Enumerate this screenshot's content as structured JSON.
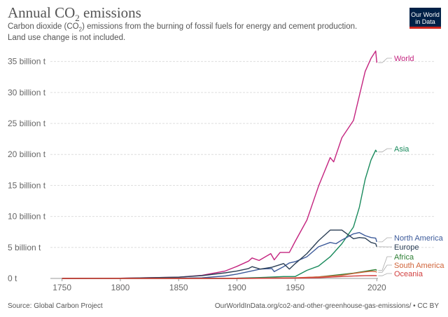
{
  "header": {
    "title_main": "Annual CO",
    "title_sub": "2",
    "title_end": " emissions",
    "subtitle_a": "Carbon dioxide (CO",
    "subtitle_sub": "2",
    "subtitle_b": ") emissions from the burning of fossil fuels for energy and cement production. Land use change is not included."
  },
  "logo": {
    "line1": "Our World",
    "line2": "in Data"
  },
  "footer": {
    "source": "Source: Global Carbon Project",
    "url": "OurWorldInData.org/co2-and-other-greenhouse-gas-emissions/ • CC BY"
  },
  "chart_data": {
    "type": "line",
    "title": "Annual CO2 emissions",
    "xlabel": "",
    "ylabel": "",
    "xlim": [
      1740,
      2021
    ],
    "ylim": [
      0,
      37000000000
    ],
    "x_ticks": [
      1750,
      1800,
      1850,
      1900,
      1950,
      2020
    ],
    "x_tick_labels": [
      "1750",
      "1800",
      "1850",
      "1900",
      "1950",
      "2020"
    ],
    "y_ticks": [
      0,
      5000000000,
      10000000000,
      15000000000,
      20000000000,
      25000000000,
      30000000000,
      35000000000
    ],
    "y_tick_labels": [
      "0 t",
      "5 billion t",
      "10 billion t",
      "15 billion t",
      "20 billion t",
      "25 billion t",
      "30 billion t",
      "35 billion t"
    ],
    "grid": true,
    "series": [
      {
        "name": "World",
        "color": "#c4247f",
        "x": [
          1750,
          1800,
          1850,
          1870,
          1890,
          1900,
          1910,
          1913,
          1919,
          1929,
          1932,
          1937,
          1945,
          1950,
          1960,
          1970,
          1980,
          1983,
          1990,
          2000,
          2005,
          2010,
          2015,
          2019,
          2020
        ],
        "values": [
          0.01,
          0.03,
          0.2,
          0.5,
          1.2,
          1.95,
          2.8,
          3.3,
          2.9,
          4.0,
          3.0,
          4.2,
          4.2,
          6.0,
          9.4,
          14.9,
          19.5,
          18.8,
          22.7,
          25.5,
          29.5,
          33.4,
          35.5,
          36.7,
          34.8
        ]
      },
      {
        "name": "Asia",
        "color": "#198a5c",
        "x": [
          1750,
          1850,
          1900,
          1920,
          1940,
          1950,
          1960,
          1970,
          1980,
          1990,
          2000,
          2005,
          2010,
          2015,
          2019,
          2020
        ],
        "values": [
          0,
          0.01,
          0.05,
          0.15,
          0.3,
          0.3,
          1.3,
          2.0,
          3.5,
          5.6,
          8.3,
          11.5,
          16.0,
          19.1,
          20.7,
          20.4
        ]
      },
      {
        "name": "North America",
        "color": "#3c5a9a",
        "x": [
          1750,
          1850,
          1870,
          1890,
          1900,
          1910,
          1920,
          1930,
          1932,
          1940,
          1945,
          1950,
          1960,
          1970,
          1980,
          1985,
          1990,
          2000,
          2005,
          2010,
          2015,
          2019,
          2020
        ],
        "values": [
          0,
          0.05,
          0.1,
          0.4,
          0.7,
          1.1,
          1.5,
          1.6,
          1.1,
          1.9,
          2.5,
          2.7,
          3.5,
          5.1,
          5.8,
          5.6,
          6.2,
          7.2,
          7.4,
          6.9,
          6.6,
          6.5,
          5.9
        ]
      },
      {
        "name": "Europe",
        "color": "#2b3f55",
        "x": [
          1750,
          1800,
          1850,
          1870,
          1890,
          1900,
          1910,
          1913,
          1920,
          1930,
          1940,
          1945,
          1950,
          1960,
          1970,
          1980,
          1990,
          2000,
          2005,
          2010,
          2015,
          2019,
          2020
        ],
        "values": [
          0.01,
          0.03,
          0.2,
          0.45,
          0.9,
          1.2,
          1.6,
          1.9,
          1.5,
          1.8,
          2.4,
          1.5,
          2.4,
          4.0,
          6.1,
          7.8,
          7.8,
          6.4,
          6.6,
          6.5,
          5.8,
          5.6,
          5.1
        ]
      },
      {
        "name": "Africa",
        "color": "#2e7f34",
        "x": [
          1750,
          1900,
          1950,
          1970,
          1990,
          2000,
          2010,
          2015,
          2019,
          2020
        ],
        "values": [
          0,
          0.005,
          0.07,
          0.25,
          0.65,
          0.85,
          1.15,
          1.3,
          1.42,
          1.3
        ]
      },
      {
        "name": "South America",
        "color": "#d0643a",
        "x": [
          1750,
          1900,
          1950,
          1970,
          1990,
          2000,
          2010,
          2015,
          2019,
          2020
        ],
        "values": [
          0,
          0.01,
          0.1,
          0.25,
          0.5,
          0.8,
          1.05,
          1.15,
          1.1,
          1.0
        ]
      },
      {
        "name": "Oceania",
        "color": "#d13e3e",
        "x": [
          1750,
          1900,
          1950,
          1970,
          1990,
          2000,
          2010,
          2015,
          2019,
          2020
        ],
        "values": [
          0,
          0.005,
          0.04,
          0.12,
          0.3,
          0.38,
          0.44,
          0.45,
          0.45,
          0.43
        ]
      }
    ]
  }
}
